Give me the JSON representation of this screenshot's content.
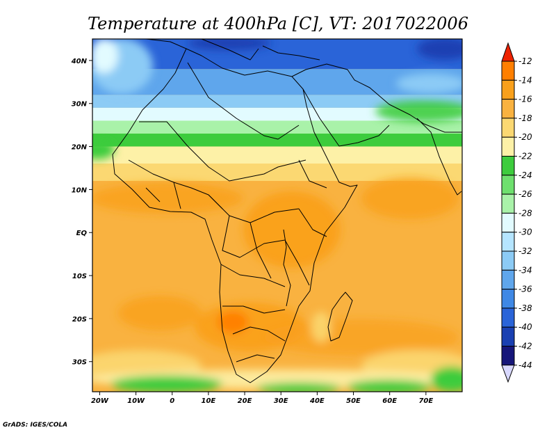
{
  "title": "Temperature at 400hPa [C], VT: 2017022006",
  "credit": "GrADS: IGES/COLA",
  "map": {
    "lon_range": [
      -22,
      80
    ],
    "lat_range": [
      -37,
      45
    ],
    "x_ticks": [
      {
        "value": -20,
        "label": "20W"
      },
      {
        "value": -10,
        "label": "10W"
      },
      {
        "value": 0,
        "label": "0"
      },
      {
        "value": 10,
        "label": "10E"
      },
      {
        "value": 20,
        "label": "20E"
      },
      {
        "value": 30,
        "label": "30E"
      },
      {
        "value": 40,
        "label": "40E"
      },
      {
        "value": 50,
        "label": "50E"
      },
      {
        "value": 60,
        "label": "60E"
      },
      {
        "value": 70,
        "label": "70E"
      }
    ],
    "y_ticks": [
      {
        "value": 40,
        "label": "40N"
      },
      {
        "value": 30,
        "label": "30N"
      },
      {
        "value": 20,
        "label": "20N"
      },
      {
        "value": 10,
        "label": "10N"
      },
      {
        "value": 0,
        "label": "EQ"
      },
      {
        "value": -10,
        "label": "10S"
      },
      {
        "value": -20,
        "label": "20S"
      },
      {
        "value": -30,
        "label": "30S"
      }
    ]
  },
  "colorbar": {
    "levels": [
      {
        "label": "-12",
        "color": "#ff4500"
      },
      {
        "label": "-14",
        "color": "#ff7f00"
      },
      {
        "label": "-16",
        "color": "#f9a01b"
      },
      {
        "label": "-18",
        "color": "#f9b240"
      },
      {
        "label": "-20",
        "color": "#fbd872"
      },
      {
        "label": "-22",
        "color": "#fdf1a7"
      },
      {
        "label": "-24",
        "color": "#3dcc3d"
      },
      {
        "label": "-26",
        "color": "#6ee06e"
      },
      {
        "label": "-28",
        "color": "#a9f2a9"
      },
      {
        "label": "-30",
        "color": "#e2fbff"
      },
      {
        "label": "-32",
        "color": "#b5e5ff"
      },
      {
        "label": "-34",
        "color": "#8ccbf5"
      },
      {
        "label": "-36",
        "color": "#5fa6ec"
      },
      {
        "label": "-38",
        "color": "#3f88e5"
      },
      {
        "label": "-40",
        "color": "#2a64d8"
      },
      {
        "label": "-42",
        "color": "#1a40b2"
      },
      {
        "label": "-44",
        "color": "#16167a"
      }
    ],
    "top_arrow_color": "#ee2200",
    "bottom_arrow_color": "#d8d8ff"
  },
  "fields": {
    "background": "#f9b240",
    "zones": [
      {
        "name": "north-deep-blue",
        "color": "#2a64d8",
        "lat": [
          38,
          45
        ]
      },
      {
        "name": "north-blue",
        "color": "#5fa6ec",
        "lat": [
          32,
          38
        ]
      },
      {
        "name": "north-light-blue",
        "color": "#8ccbf5",
        "lat": [
          29,
          32
        ]
      },
      {
        "name": "north-pale",
        "color": "#e2fbff",
        "lat": [
          26,
          29
        ]
      },
      {
        "name": "north-green-light",
        "color": "#a9f2a9",
        "lat": [
          23,
          26
        ]
      },
      {
        "name": "north-green",
        "color": "#3dcc3d",
        "lat": [
          20,
          23
        ]
      },
      {
        "name": "north-yellow",
        "color": "#fdf1a7",
        "lat": [
          16,
          20
        ]
      },
      {
        "name": "north-light-orange",
        "color": "#fbd872",
        "lat": [
          12,
          16
        ]
      }
    ]
  }
}
